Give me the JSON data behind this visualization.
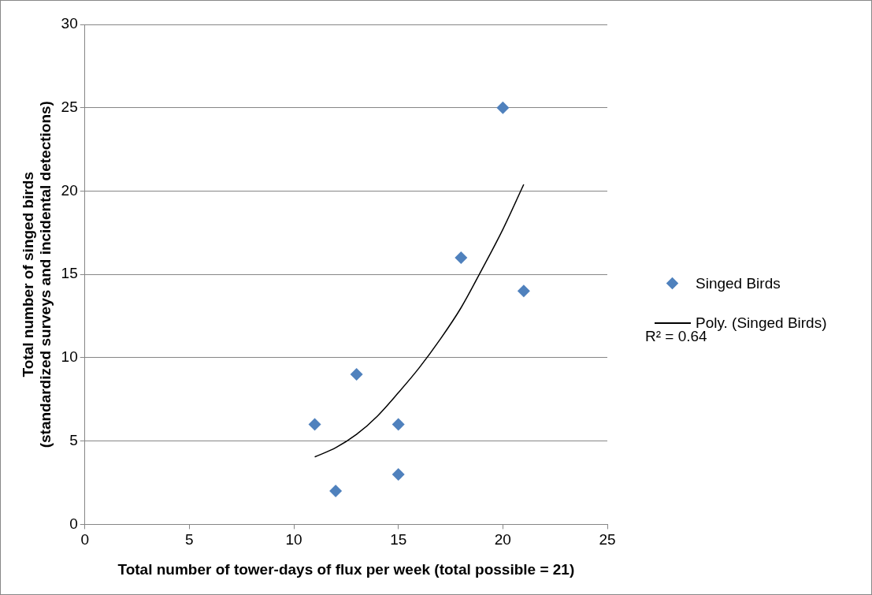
{
  "chart_data": {
    "type": "scatter",
    "xlabel": "Total number of tower-days of flux per week (total possible = 21)",
    "ylabel": "Total number of singed birds\n(standardized surveys and incidental detections)",
    "series": [
      {
        "name": "Singed Birds",
        "type": "scatter",
        "color": "#4f81bd",
        "marker": "diamond",
        "x": [
          11,
          12,
          13,
          15,
          15,
          18,
          20,
          21
        ],
        "values": [
          6,
          2,
          9,
          6,
          3,
          16,
          25,
          14
        ]
      },
      {
        "name": "Poly. (Singed Birds)",
        "type": "line",
        "color": "#000000",
        "marker": "none",
        "x": [
          11,
          12,
          13,
          14,
          15,
          16,
          17,
          18,
          19,
          20,
          21
        ],
        "values": [
          4.05,
          4.6,
          5.4,
          6.5,
          7.9,
          9.4,
          11.1,
          13.0,
          15.3,
          17.7,
          20.4
        ]
      }
    ],
    "annotations": [
      "R² = 0.64"
    ],
    "xlim": [
      0,
      25
    ],
    "xticks": [
      0,
      5,
      10,
      15,
      20,
      25
    ],
    "ylim": [
      0,
      30
    ],
    "yticks": [
      0,
      5,
      10,
      15,
      20,
      25,
      30
    ],
    "grid": "y",
    "legend": "right"
  }
}
